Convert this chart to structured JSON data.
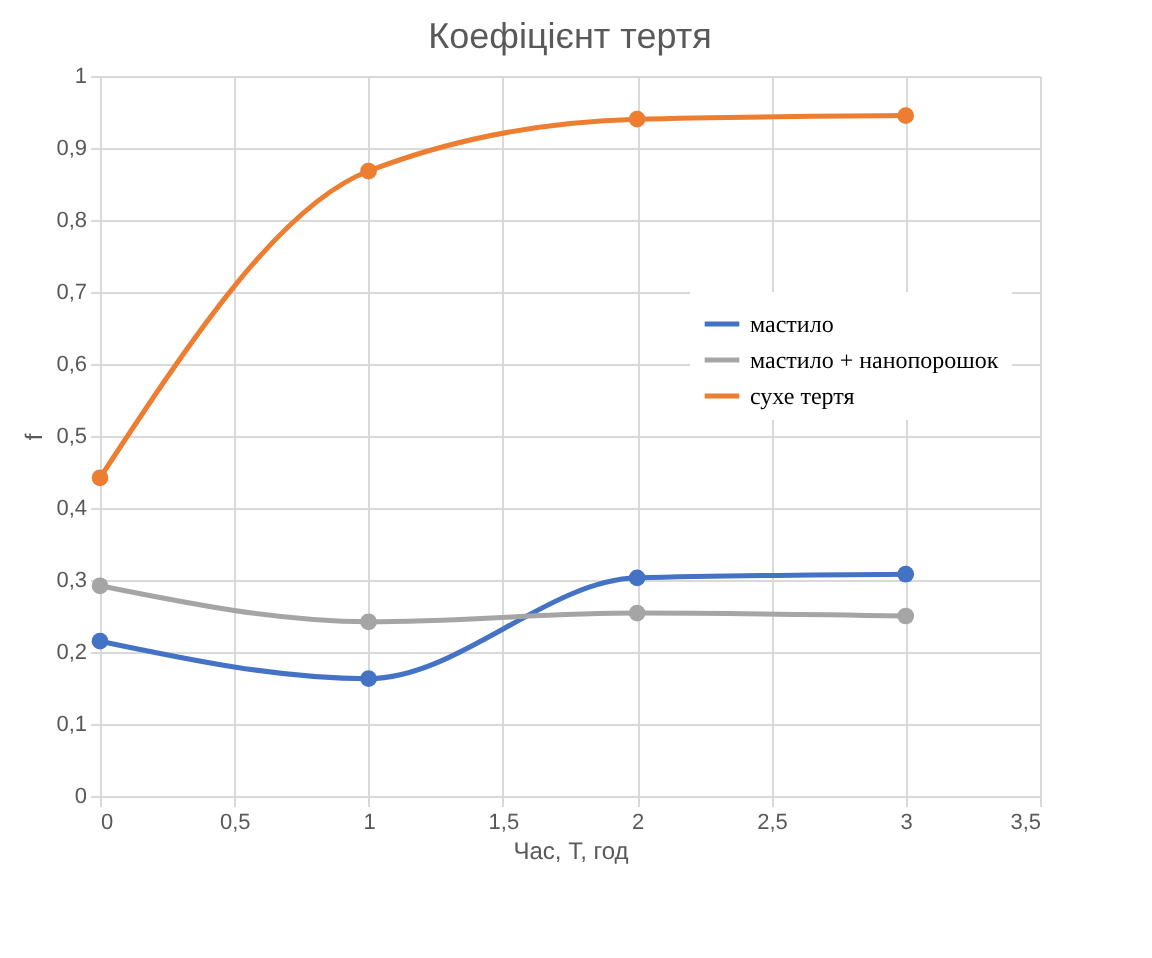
{
  "chart_data": {
    "type": "line",
    "title": "Коефіцієнт тертя",
    "xlabel": "Час, Т, год",
    "ylabel": "f",
    "x": [
      0,
      1,
      2,
      3
    ],
    "series": [
      {
        "name": "мастило",
        "color": "#4472c4",
        "values": [
          0.215,
          0.163,
          0.303,
          0.308
        ]
      },
      {
        "name": "мастило + нанопорошок",
        "color": "#a5a5a5",
        "values": [
          0.292,
          0.242,
          0.254,
          0.25
        ]
      },
      {
        "name": "сухе тертя",
        "color": "#ed7d31",
        "values": [
          0.442,
          0.868,
          0.94,
          0.945
        ]
      }
    ],
    "xlim": [
      0,
      3.5
    ],
    "xticks": [
      0,
      {
        "value": 0.5,
        "label": "0,5"
      },
      1,
      {
        "value": 1.5,
        "label": "1,5"
      },
      2,
      {
        "value": 2.5,
        "label": "2,5"
      },
      3,
      {
        "value": 3.5,
        "label": "3,5"
      }
    ],
    "ylim": [
      0,
      1
    ],
    "yticks": [
      0,
      {
        "value": 0.1,
        "label": "0,1"
      },
      {
        "value": 0.2,
        "label": "0,2"
      },
      {
        "value": 0.3,
        "label": "0,3"
      },
      {
        "value": 0.4,
        "label": "0,4"
      },
      {
        "value": 0.5,
        "label": "0,5"
      },
      {
        "value": 0.6,
        "label": "0,6"
      },
      {
        "value": 0.7,
        "label": "0,7"
      },
      {
        "value": 0.8,
        "label": "0,8"
      },
      {
        "value": 0.9,
        "label": "0,9"
      },
      1
    ],
    "grid": true,
    "legend": "right",
    "marker": "circle",
    "line_style": "solid"
  }
}
